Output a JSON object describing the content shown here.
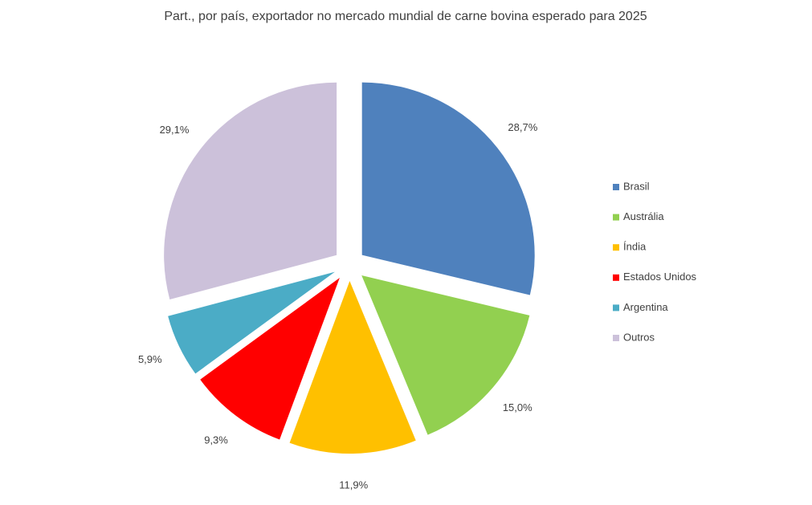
{
  "chart_data": {
    "type": "pie",
    "title": "Part., por país, exportador no mercado mundial de carne bovina esperado para 2025",
    "categories": [
      "Brasil",
      "Austrália",
      "Índia",
      "Estados Unidos",
      "Argentina",
      "Outros"
    ],
    "values": [
      28.7,
      15.0,
      11.9,
      9.3,
      5.9,
      29.1
    ],
    "value_labels": [
      "28,7%",
      "15,0%",
      "11,9%",
      "9,3%",
      "5,9%",
      "29,1%"
    ],
    "colors": [
      "#4f81bd",
      "#92d050",
      "#ffc000",
      "#ff0000",
      "#4bacc6",
      "#ccc1da"
    ],
    "legend": "right"
  }
}
